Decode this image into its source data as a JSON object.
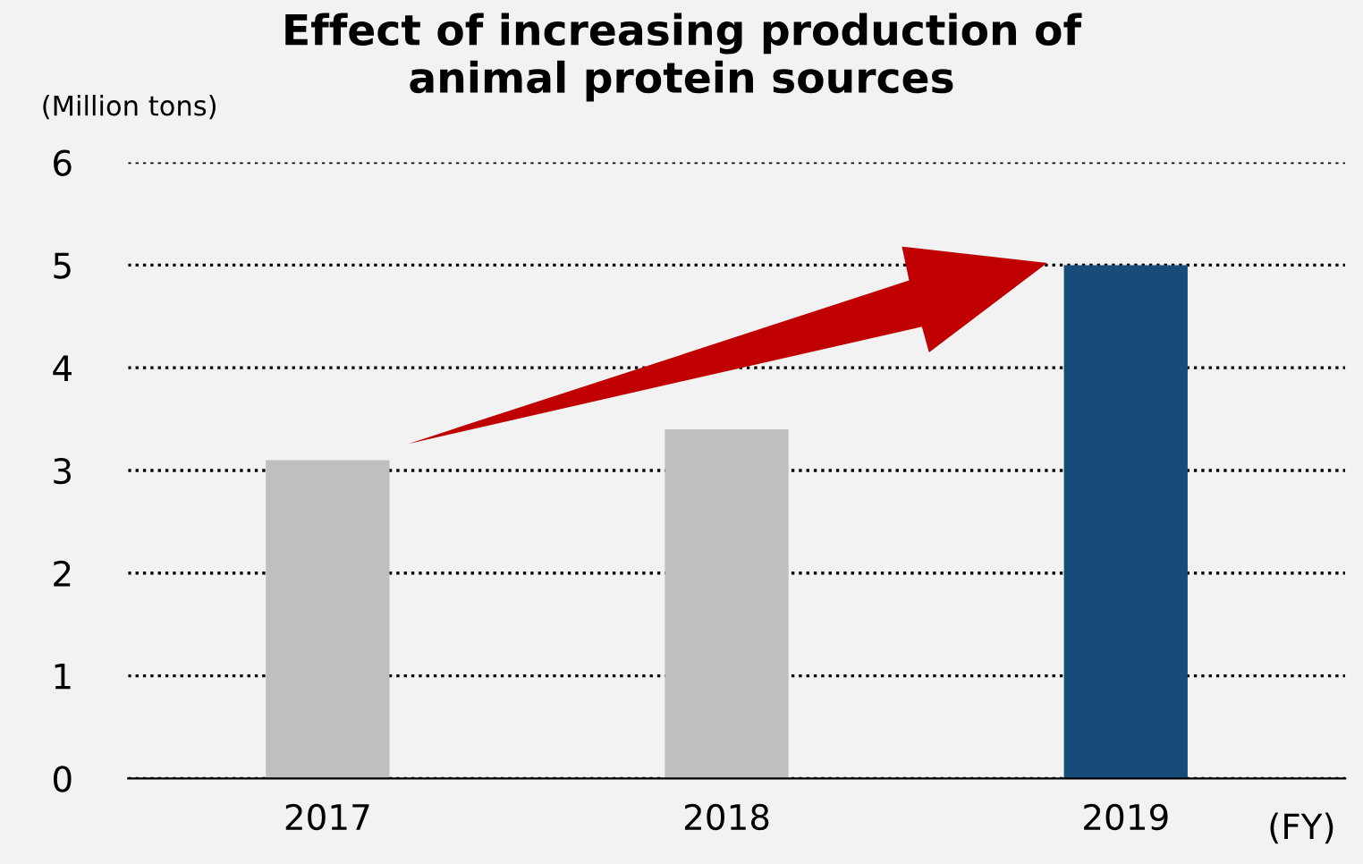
{
  "chart_data": {
    "type": "bar",
    "title": "Effect of increasing production of\nanimal protein sources",
    "ylabel": "(Million tons)",
    "xlabel": "(FY)",
    "categories": [
      "2017",
      "2018",
      "2019"
    ],
    "values": [
      3.1,
      3.4,
      5.0
    ],
    "colors": [
      "#bfbfbf",
      "#bfbfbf",
      "#174c7a"
    ],
    "ylim": [
      0,
      6
    ],
    "yticks": [
      0,
      1,
      2,
      3,
      4,
      5,
      6
    ],
    "grid": "y"
  }
}
